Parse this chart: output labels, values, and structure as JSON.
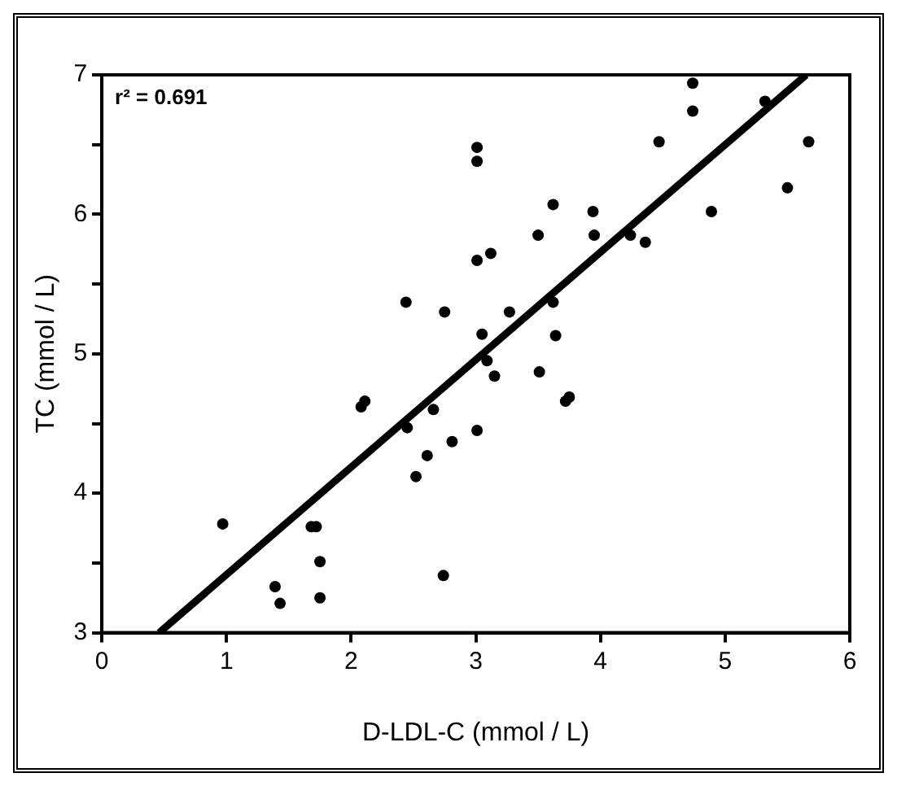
{
  "chart_data": {
    "type": "scatter",
    "xlabel": "D-LDL-C (mmol / L)",
    "ylabel": "TC (mmol / L)",
    "annotations": [
      "r² = 0.691"
    ],
    "xlim": [
      0,
      6
    ],
    "xticks": [
      0,
      1,
      2,
      3,
      4,
      5,
      6
    ],
    "ylim": [
      3,
      7
    ],
    "yticks": [
      3,
      {
        "value": 3.5,
        "label": null
      },
      4,
      {
        "value": 4.5,
        "label": null
      },
      5,
      {
        "value": 5.5,
        "label": null
      },
      6,
      {
        "value": 6.5,
        "label": null
      },
      7
    ],
    "grid": false,
    "legend": false,
    "marker": "circle",
    "series": [
      {
        "color": "#000000",
        "x": [
          4.74,
          4.74,
          5.32,
          4.47,
          5.67,
          5.5,
          3.62,
          3.94,
          4.89,
          3.5,
          3.95,
          4.24,
          4.36,
          3.01,
          3.01,
          3.01,
          3.12,
          2.44,
          2.75,
          3.05,
          3.62,
          3.27,
          3.64,
          3.09,
          3.15,
          3.51,
          3.72,
          3.75,
          3.01,
          2.08,
          2.11,
          2.66,
          2.45,
          2.81,
          2.61,
          2.52,
          0.97,
          1.68,
          1.72,
          1.75,
          2.74,
          1.39,
          1.43,
          1.75
        ],
        "values": [
          6.94,
          6.74,
          6.81,
          6.52,
          6.52,
          6.19,
          6.07,
          6.02,
          6.02,
          5.85,
          5.85,
          5.85,
          5.8,
          6.48,
          6.38,
          5.67,
          5.72,
          5.37,
          5.3,
          5.14,
          5.37,
          5.3,
          5.13,
          4.95,
          4.84,
          4.87,
          4.66,
          4.69,
          4.45,
          4.62,
          4.66,
          4.6,
          4.47,
          4.37,
          4.27,
          4.12,
          3.78,
          3.76,
          3.76,
          3.51,
          3.41,
          3.33,
          3.21,
          3.25
        ]
      },
      {
        "type": "line",
        "color": "#000000",
        "marker": "none",
        "line_style": "solid",
        "x": [
          0.46,
          5.65
        ],
        "values": [
          3,
          7
        ]
      }
    ]
  }
}
